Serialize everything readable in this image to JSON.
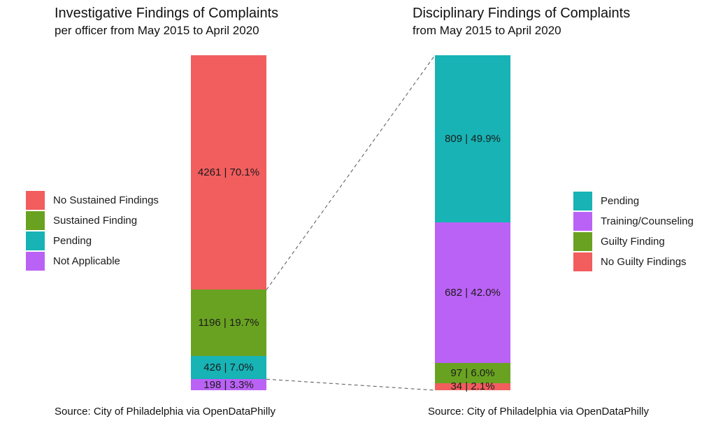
{
  "chart_data": [
    {
      "type": "bar",
      "stacked": true,
      "orientation": "vertical",
      "title": "Investigative Findings of Complaints",
      "subtitle": "per officer from May 2015 to April 2020",
      "source": "Source: City of Philadelphia via OpenDataPhilly",
      "legend_position": "left",
      "axes_shown": false,
      "segments_top_to_bottom": [
        {
          "category": "No Sustained Findings",
          "count": 4261,
          "percent": 70.1,
          "color": "#F25D5E",
          "bar_label": "4261 | 70.1%"
        },
        {
          "category": "Sustained Finding",
          "count": 1196,
          "percent": 19.7,
          "color": "#69A221",
          "bar_label": "1196 | 19.7%"
        },
        {
          "category": "Pending",
          "count": 426,
          "percent": 7.0,
          "color": "#17B3B5",
          "bar_label": "426 | 7.0%"
        },
        {
          "category": "Not Applicable",
          "count": 198,
          "percent": 3.3,
          "color": "#BB62F6",
          "bar_label": "198 | 3.3%"
        }
      ],
      "legend": [
        {
          "label": "No Sustained Findings",
          "color": "#F25D5E"
        },
        {
          "label": "Sustained Finding",
          "color": "#69A221"
        },
        {
          "label": "Pending",
          "color": "#17B3B5"
        },
        {
          "label": "Not Applicable",
          "color": "#BB62F6"
        }
      ]
    },
    {
      "type": "bar",
      "stacked": true,
      "orientation": "vertical",
      "title": "Disciplinary Findings of Complaints",
      "subtitle": "from May 2015 to April 2020",
      "source": "Source: City of Philadelphia via OpenDataPhilly",
      "legend_position": "right",
      "axes_shown": false,
      "segments_top_to_bottom": [
        {
          "category": "Pending",
          "count": 809,
          "percent": 49.9,
          "color": "#17B3B5",
          "bar_label": "809 | 49.9%"
        },
        {
          "category": "Training/Counseling",
          "count": 682,
          "percent": 42.0,
          "color": "#BB62F6",
          "bar_label": "682 | 42.0%"
        },
        {
          "category": "Guilty Finding",
          "count": 97,
          "percent": 6.0,
          "color": "#69A221",
          "bar_label": "97 | 6.0%"
        },
        {
          "category": "No Guilty Findings",
          "count": 34,
          "percent": 2.1,
          "color": "#F25D5E",
          "bar_label": "34 | 2.1%"
        }
      ],
      "legend": [
        {
          "label": "Pending",
          "color": "#17B3B5"
        },
        {
          "label": "Training/Counseling",
          "color": "#BB62F6"
        },
        {
          "label": "Guilty Finding",
          "color": "#69A221"
        },
        {
          "label": "No Guilty Findings",
          "color": "#F25D5E"
        }
      ]
    }
  ],
  "connectors": [
    {
      "style": "dashed",
      "color": "#555555",
      "from": "left bar boundary between No Sustained Findings and Sustained Finding",
      "to": "top of right bar"
    },
    {
      "style": "dashed",
      "color": "#555555",
      "from": "left bar boundary between Pending and Not Applicable",
      "to": "bottom of right bar"
    }
  ]
}
